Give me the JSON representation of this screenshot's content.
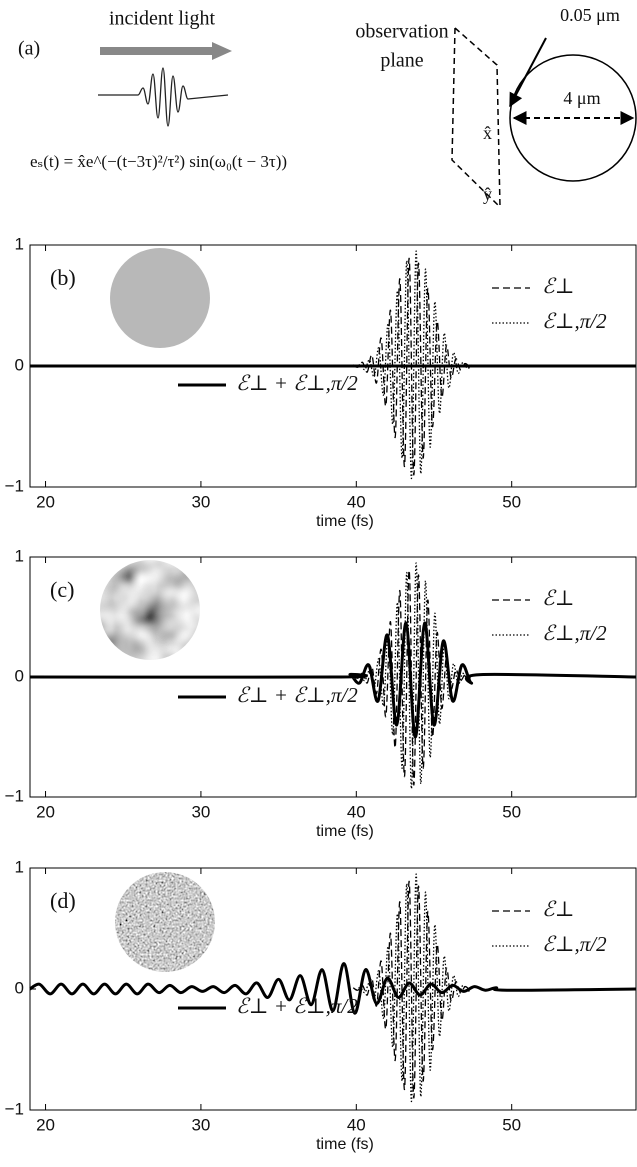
{
  "diagram": {
    "panel_label": "(a)",
    "incident": "incident light",
    "plane_1": "observation",
    "plane_2": "plane",
    "thickness": "0.05 μm",
    "diameter": "4 μm",
    "x_axis": "x̂",
    "y_axis": "ŷ",
    "equation": "eₛ(t) = x̂e^(−(t−3τ)²/τ²) sin(ω₀(t − 3τ))"
  },
  "chart_data": [
    {
      "type": "line",
      "panel_label": "(b)",
      "xlabel": "time (fs)",
      "xlim": [
        19,
        58
      ],
      "ylim": [
        -1,
        1
      ],
      "xticks": [
        20,
        30,
        40,
        50
      ],
      "yticks": [
        {
          "value": -1,
          "label": "−1"
        },
        0,
        1
      ],
      "series": [
        {
          "name": "ℰ⊥",
          "color": "#000000",
          "style": "dashed",
          "x": [
            39.8,
            40.1,
            40.4,
            40.7,
            41,
            41.3,
            41.6,
            41.9,
            42.2,
            42.5,
            42.8,
            43.1,
            43.4,
            43.7,
            44,
            44.3,
            44.6,
            44.9,
            45.2,
            45.5,
            45.8,
            46.1,
            46.4,
            46.7,
            47,
            47.3
          ],
          "values": [
            0.01,
            -0.01,
            0.03,
            -0.05,
            0.09,
            -0.14,
            0.23,
            -0.33,
            0.46,
            -0.59,
            0.72,
            -0.83,
            0.89,
            -0.9,
            0.85,
            -0.76,
            0.64,
            -0.5,
            0.37,
            -0.26,
            0.17,
            -0.1,
            0.06,
            -0.03,
            0.02,
            -0.01
          ]
        },
        {
          "name": "ℰ⊥,π/2",
          "color": "#000000",
          "style": "dotted",
          "x": [
            39.95,
            40.25,
            40.55,
            40.85,
            41.15,
            41.45,
            41.75,
            42.05,
            42.35,
            42.65,
            42.95,
            43.25,
            43.55,
            43.85,
            44.15,
            44.45,
            44.75,
            45.05,
            45.35,
            45.65,
            45.95,
            46.25,
            46.55,
            46.85,
            47.15,
            47.45
          ],
          "values": [
            -0.01,
            0.01,
            -0.03,
            0.05,
            -0.09,
            0.15,
            -0.24,
            0.35,
            -0.48,
            0.62,
            -0.76,
            0.87,
            -0.93,
            0.95,
            -0.89,
            0.8,
            -0.67,
            0.53,
            -0.39,
            0.27,
            -0.18,
            0.11,
            -0.06,
            0.03,
            -0.02,
            0.01
          ]
        },
        {
          "name": "ℰ⊥ + ℰ⊥,π/2",
          "color": "#000000",
          "style": "solid",
          "x": [
            19,
            58
          ],
          "values": [
            0,
            0
          ]
        }
      ]
    },
    {
      "type": "line",
      "panel_label": "(c)",
      "xlabel": "time (fs)",
      "xlim": [
        19,
        58
      ],
      "ylim": [
        -1,
        1
      ],
      "xticks": [
        20,
        30,
        40,
        50
      ],
      "yticks": [
        {
          "value": -1,
          "label": "−1"
        },
        0,
        1
      ],
      "series": [
        {
          "name": "ℰ⊥",
          "color": "#000000",
          "style": "dashed",
          "x": [
            39.8,
            40.1,
            40.4,
            40.7,
            41,
            41.3,
            41.6,
            41.9,
            42.2,
            42.5,
            42.8,
            43.1,
            43.4,
            43.7,
            44,
            44.3,
            44.6,
            44.9,
            45.2,
            45.5,
            45.8,
            46.1,
            46.4,
            46.7,
            47,
            47.3
          ],
          "values": [
            0.01,
            -0.01,
            0.03,
            -0.05,
            0.09,
            -0.14,
            0.23,
            -0.33,
            0.46,
            -0.59,
            0.72,
            -0.83,
            0.89,
            -0.9,
            0.85,
            -0.76,
            0.64,
            -0.5,
            0.37,
            -0.26,
            0.17,
            -0.1,
            0.06,
            -0.03,
            0.02,
            -0.01
          ]
        },
        {
          "name": "ℰ⊥,π/2",
          "color": "#000000",
          "style": "dotted",
          "x": [
            39.95,
            40.25,
            40.55,
            40.85,
            41.15,
            41.45,
            41.75,
            42.05,
            42.35,
            42.65,
            42.95,
            43.25,
            43.55,
            43.85,
            44.15,
            44.45,
            44.75,
            45.05,
            45.35,
            45.65,
            45.95,
            46.25,
            46.55,
            46.85,
            47.15,
            47.45
          ],
          "values": [
            -0.01,
            0.01,
            -0.03,
            0.05,
            -0.09,
            0.15,
            -0.24,
            0.35,
            -0.48,
            0.62,
            -0.76,
            0.87,
            -0.93,
            0.95,
            -0.89,
            0.8,
            -0.67,
            0.53,
            -0.39,
            0.27,
            -0.18,
            0.11,
            -0.06,
            0.03,
            -0.02,
            0.01
          ]
        },
        {
          "name": "ℰ⊥ + ℰ⊥,π/2",
          "color": "#000000",
          "style": "solid",
          "x": [
            19,
            39,
            39.6,
            40.2,
            40.8,
            41.4,
            42,
            42.6,
            43.2,
            43.8,
            44.4,
            45,
            45.6,
            46.2,
            46.8,
            47.4,
            48,
            58
          ],
          "values": [
            0,
            0,
            0.02,
            -0.05,
            0.1,
            -0.2,
            0.35,
            -0.4,
            0.45,
            -0.5,
            0.45,
            -0.4,
            0.3,
            -0.2,
            0.1,
            -0.05,
            0.02,
            0
          ]
        }
      ]
    },
    {
      "type": "line",
      "panel_label": "(d)",
      "xlabel": "time (fs)",
      "xlim": [
        19,
        58
      ],
      "ylim": [
        -1,
        1
      ],
      "xticks": [
        20,
        30,
        40,
        50
      ],
      "yticks": [
        {
          "value": -1,
          "label": "−1"
        },
        0,
        1
      ],
      "series": [
        {
          "name": "ℰ⊥",
          "color": "#000000",
          "style": "dashed",
          "x": [
            39.8,
            40.1,
            40.4,
            40.7,
            41,
            41.3,
            41.6,
            41.9,
            42.2,
            42.5,
            42.8,
            43.1,
            43.4,
            43.7,
            44,
            44.3,
            44.6,
            44.9,
            45.2,
            45.5,
            45.8,
            46.1,
            46.4,
            46.7,
            47,
            47.3
          ],
          "values": [
            0.01,
            -0.01,
            0.03,
            -0.05,
            0.09,
            -0.14,
            0.23,
            -0.33,
            0.46,
            -0.59,
            0.72,
            -0.83,
            0.89,
            -0.9,
            0.85,
            -0.76,
            0.64,
            -0.5,
            0.37,
            -0.26,
            0.17,
            -0.1,
            0.06,
            -0.03,
            0.02,
            -0.01
          ]
        },
        {
          "name": "ℰ⊥,π/2",
          "color": "#000000",
          "style": "dotted",
          "x": [
            39.95,
            40.25,
            40.55,
            40.85,
            41.15,
            41.45,
            41.75,
            42.05,
            42.35,
            42.65,
            42.95,
            43.25,
            43.55,
            43.85,
            44.15,
            44.45,
            44.75,
            45.05,
            45.35,
            45.65,
            45.95,
            46.25,
            46.55,
            46.85,
            47.15,
            47.45
          ],
          "values": [
            -0.01,
            0.01,
            -0.03,
            0.05,
            -0.09,
            0.15,
            -0.24,
            0.35,
            -0.48,
            0.62,
            -0.76,
            0.87,
            -0.93,
            0.95,
            -0.89,
            0.8,
            -0.67,
            0.53,
            -0.39,
            0.27,
            -0.18,
            0.11,
            -0.06,
            0.03,
            -0.02,
            0.01
          ]
        },
        {
          "name": "ℰ⊥ + ℰ⊥,π/2",
          "color": "#000000",
          "style": "solid",
          "x": [
            19,
            19.6,
            20.3,
            21,
            21.7,
            22.4,
            23.1,
            23.8,
            24.5,
            25.2,
            25.9,
            26.6,
            27.3,
            28,
            28.7,
            29.4,
            30.1,
            30.8,
            31.5,
            32.2,
            32.9,
            33.6,
            34.3,
            35,
            35.7,
            36.4,
            37.1,
            37.8,
            38.5,
            39.2,
            39.9,
            40.6,
            41.3,
            42,
            42.7,
            43.4,
            44.1,
            44.8,
            45.5,
            46.2,
            46.9,
            47.6,
            48.3,
            49,
            49.7,
            58
          ],
          "values": [
            0,
            0.04,
            -0.04,
            0.04,
            -0.04,
            0.04,
            -0.04,
            0.04,
            -0.04,
            0.04,
            -0.04,
            0.04,
            -0.03,
            0.03,
            -0.03,
            0.02,
            -0.02,
            0.02,
            -0.03,
            0.03,
            -0.04,
            0.05,
            -0.07,
            0.08,
            -0.09,
            0.11,
            -0.13,
            0.16,
            -0.18,
            0.21,
            -0.2,
            0.16,
            -0.12,
            0.09,
            -0.07,
            0.05,
            -0.05,
            0.04,
            -0.03,
            0.03,
            -0.02,
            0.02,
            -0.01,
            0.01,
            -0.01,
            0
          ]
        }
      ]
    }
  ]
}
